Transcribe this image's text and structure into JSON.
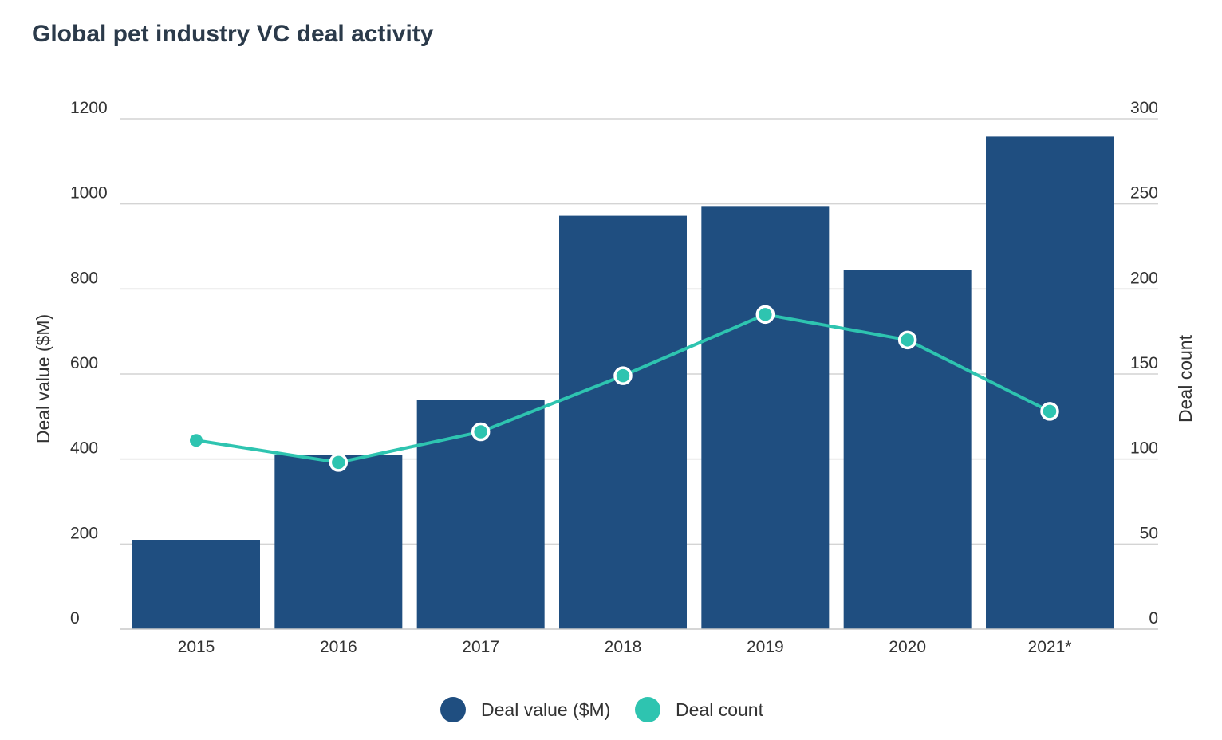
{
  "chart_data": {
    "type": "bar",
    "title": "Global pet industry VC deal activity",
    "categories": [
      "2015",
      "2016",
      "2017",
      "2018",
      "2019",
      "2020",
      "2021*"
    ],
    "series": [
      {
        "name": "Deal value ($M)",
        "type": "bar",
        "axis": "left",
        "color": "#1f4e80",
        "values": [
          210,
          410,
          540,
          972,
          995,
          845,
          1158
        ]
      },
      {
        "name": "Deal count",
        "type": "line",
        "axis": "right",
        "color": "#2ec4b0",
        "values": [
          111,
          98,
          116,
          149,
          185,
          170,
          128
        ]
      }
    ],
    "ylabel": "Deal value ($M)",
    "ylabel_right": "Deal count",
    "ylim": [
      0,
      1200
    ],
    "ylim_right": [
      0,
      300
    ],
    "yticks": [
      "0",
      "200",
      "400",
      "600",
      "800",
      "1000",
      "1200"
    ],
    "yticks_right": [
      "0",
      "50",
      "100",
      "150",
      "200",
      "250",
      "300"
    ],
    "grid": true,
    "legend": "bottom-center"
  }
}
